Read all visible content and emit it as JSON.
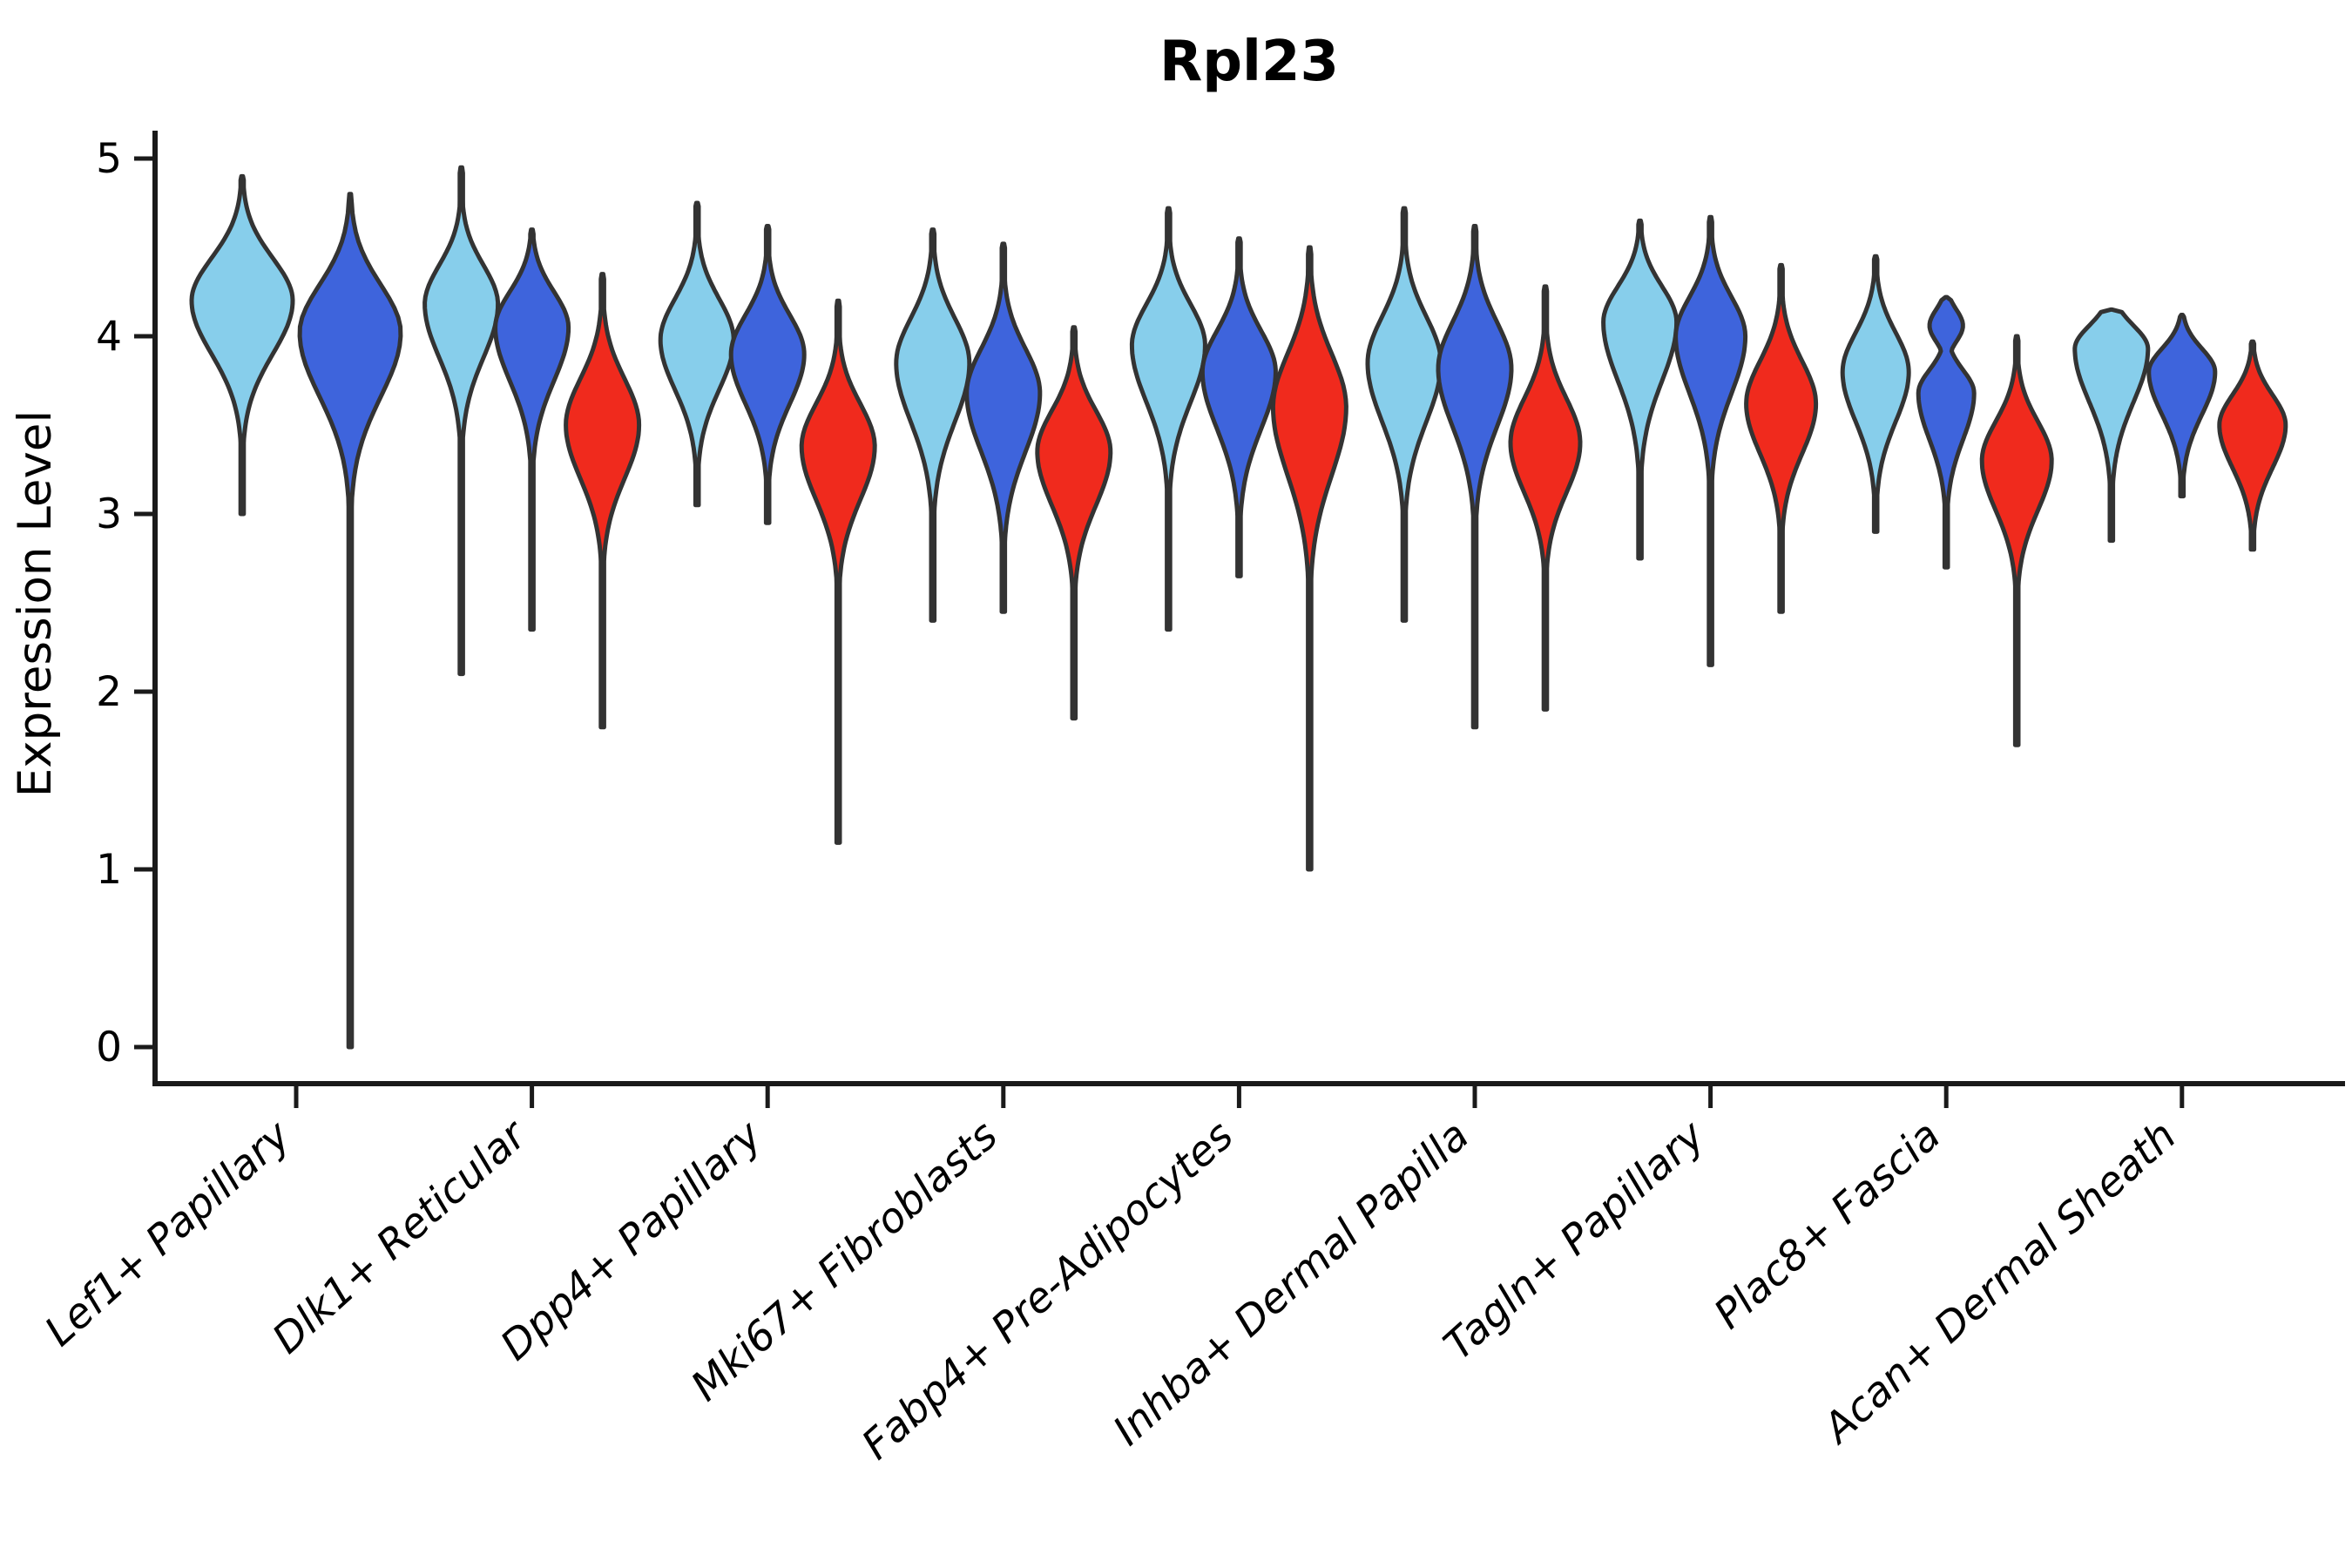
{
  "title": "Rpl23",
  "y_axis": {
    "label": "Expression Level"
  },
  "palette": {
    "light_blue": "#87CEEB",
    "dark_blue": "#3E64DC",
    "red": "#F02A1D",
    "outline": "#333333",
    "axis": "#1a1a1a"
  },
  "chart_data": {
    "type": "violin",
    "title": "Rpl23",
    "xlabel": "",
    "ylabel": "Expression Level",
    "ylim": [
      0,
      5
    ],
    "yticks": [
      0,
      1,
      2,
      3,
      4,
      5
    ],
    "grid": false,
    "legend": "none",
    "series_note": "each category holds grouped violins colored light_blue, dark_blue, red; values are Expression Level units read from the axis",
    "categories": [
      "Lef1+ Papillary",
      "Dlk1+ Reticular",
      "Dpp4+ Papillary",
      "Mki67+ Fibroblasts",
      "Fabp4+ Pre-Adipocytes",
      "Inhba+ Dermal Papilla",
      "Tagln+ Papillary",
      "Plac8+ Fascia",
      "Acan+ Dermal Sheath"
    ],
    "groups": [
      {
        "category": "Lef1+ Papillary",
        "violins": [
          {
            "color": "light_blue",
            "min": 3.0,
            "max": 4.9,
            "peak": 4.2,
            "half_width": 58,
            "sigma_upper": 0.24,
            "sigma_lower": 0.3
          },
          {
            "color": "dark_blue",
            "min": 0.0,
            "max": 4.8,
            "peak": 4.02,
            "half_width": 58,
            "sigma_upper": 0.27,
            "sigma_lower": 0.36
          }
        ]
      },
      {
        "category": "Dlk1+ Reticular",
        "violins": [
          {
            "color": "light_blue",
            "min": 2.1,
            "max": 4.95,
            "peak": 4.18,
            "half_width": 42,
            "sigma_upper": 0.22,
            "sigma_lower": 0.3
          },
          {
            "color": "dark_blue",
            "min": 2.35,
            "max": 4.6,
            "peak": 4.05,
            "half_width": 42,
            "sigma_upper": 0.2,
            "sigma_lower": 0.3
          },
          {
            "color": "red",
            "min": 1.8,
            "max": 4.35,
            "peak": 3.5,
            "half_width": 42,
            "sigma_upper": 0.26,
            "sigma_lower": 0.3
          }
        ]
      },
      {
        "category": "Dpp4+ Papillary",
        "violins": [
          {
            "color": "light_blue",
            "min": 3.05,
            "max": 4.75,
            "peak": 3.98,
            "half_width": 42,
            "sigma_upper": 0.23,
            "sigma_lower": 0.28
          },
          {
            "color": "dark_blue",
            "min": 2.95,
            "max": 4.62,
            "peak": 3.9,
            "half_width": 42,
            "sigma_upper": 0.22,
            "sigma_lower": 0.28
          },
          {
            "color": "red",
            "min": 1.15,
            "max": 4.2,
            "peak": 3.38,
            "half_width": 42,
            "sigma_upper": 0.24,
            "sigma_lower": 0.3
          }
        ]
      },
      {
        "category": "Mki67+ Fibroblasts",
        "violins": [
          {
            "color": "light_blue",
            "min": 2.4,
            "max": 4.6,
            "peak": 3.85,
            "half_width": 42,
            "sigma_upper": 0.25,
            "sigma_lower": 0.33
          },
          {
            "color": "dark_blue",
            "min": 2.45,
            "max": 4.52,
            "peak": 3.68,
            "half_width": 42,
            "sigma_upper": 0.25,
            "sigma_lower": 0.33
          },
          {
            "color": "red",
            "min": 1.85,
            "max": 4.05,
            "peak": 3.35,
            "half_width": 42,
            "sigma_upper": 0.23,
            "sigma_lower": 0.3
          }
        ]
      },
      {
        "category": "Fabp4+ Pre-Adipocytes",
        "violins": [
          {
            "color": "light_blue",
            "min": 2.35,
            "max": 4.72,
            "peak": 3.95,
            "half_width": 42,
            "sigma_upper": 0.23,
            "sigma_lower": 0.32
          },
          {
            "color": "dark_blue",
            "min": 2.65,
            "max": 4.55,
            "peak": 3.8,
            "half_width": 42,
            "sigma_upper": 0.23,
            "sigma_lower": 0.32
          },
          {
            "color": "red",
            "min": 1.0,
            "max": 4.5,
            "peak": 3.6,
            "half_width": 42,
            "sigma_upper": 0.3,
            "sigma_lower": 0.38
          }
        ]
      },
      {
        "category": "Inhba+ Dermal Papilla",
        "violins": [
          {
            "color": "light_blue",
            "min": 2.4,
            "max": 4.72,
            "peak": 3.85,
            "half_width": 42,
            "sigma_upper": 0.26,
            "sigma_lower": 0.33
          },
          {
            "color": "dark_blue",
            "min": 1.8,
            "max": 4.62,
            "peak": 3.82,
            "half_width": 42,
            "sigma_upper": 0.26,
            "sigma_lower": 0.33
          },
          {
            "color": "red",
            "min": 1.9,
            "max": 4.28,
            "peak": 3.4,
            "half_width": 40,
            "sigma_upper": 0.25,
            "sigma_lower": 0.28
          }
        ]
      },
      {
        "category": "Tagln+ Papillary",
        "violins": [
          {
            "color": "light_blue",
            "min": 2.75,
            "max": 4.65,
            "peak": 4.08,
            "half_width": 42,
            "sigma_upper": 0.2,
            "sigma_lower": 0.33
          },
          {
            "color": "dark_blue",
            "min": 2.15,
            "max": 4.67,
            "peak": 4.0,
            "half_width": 40,
            "sigma_upper": 0.22,
            "sigma_lower": 0.32
          },
          {
            "color": "red",
            "min": 2.45,
            "max": 4.4,
            "peak": 3.62,
            "half_width": 40,
            "sigma_upper": 0.24,
            "sigma_lower": 0.28
          }
        ]
      },
      {
        "category": "Plac8+ Fascia",
        "violins": [
          {
            "color": "light_blue",
            "min": 2.9,
            "max": 4.45,
            "peak": 3.8,
            "half_width": 38,
            "sigma_upper": 0.22,
            "sigma_lower": 0.28
          },
          {
            "color": "dark_blue",
            "min": 2.7,
            "max": 4.22,
            "peak": 3.68,
            "half_width": 32,
            "sigma_upper": 0.13,
            "sigma_lower": 0.26,
            "knobs": [
              {
                "v": 4.06,
                "a": 0.6,
                "s": 0.09
              }
            ]
          },
          {
            "color": "red",
            "min": 1.7,
            "max": 4.0,
            "peak": 3.3,
            "half_width": 40,
            "sigma_upper": 0.22,
            "sigma_lower": 0.28
          }
        ]
      },
      {
        "category": "Acan+ Dermal Sheath",
        "violins": [
          {
            "color": "light_blue",
            "min": 2.85,
            "max": 4.15,
            "peak": 3.93,
            "half_width": 42,
            "sigma_upper": 0.13,
            "sigma_lower": 0.3
          },
          {
            "color": "dark_blue",
            "min": 3.1,
            "max": 4.12,
            "peak": 3.8,
            "half_width": 38,
            "sigma_upper": 0.13,
            "sigma_lower": 0.24
          },
          {
            "color": "red",
            "min": 2.8,
            "max": 3.97,
            "peak": 3.5,
            "half_width": 38,
            "sigma_upper": 0.17,
            "sigma_lower": 0.24
          }
        ]
      }
    ]
  }
}
